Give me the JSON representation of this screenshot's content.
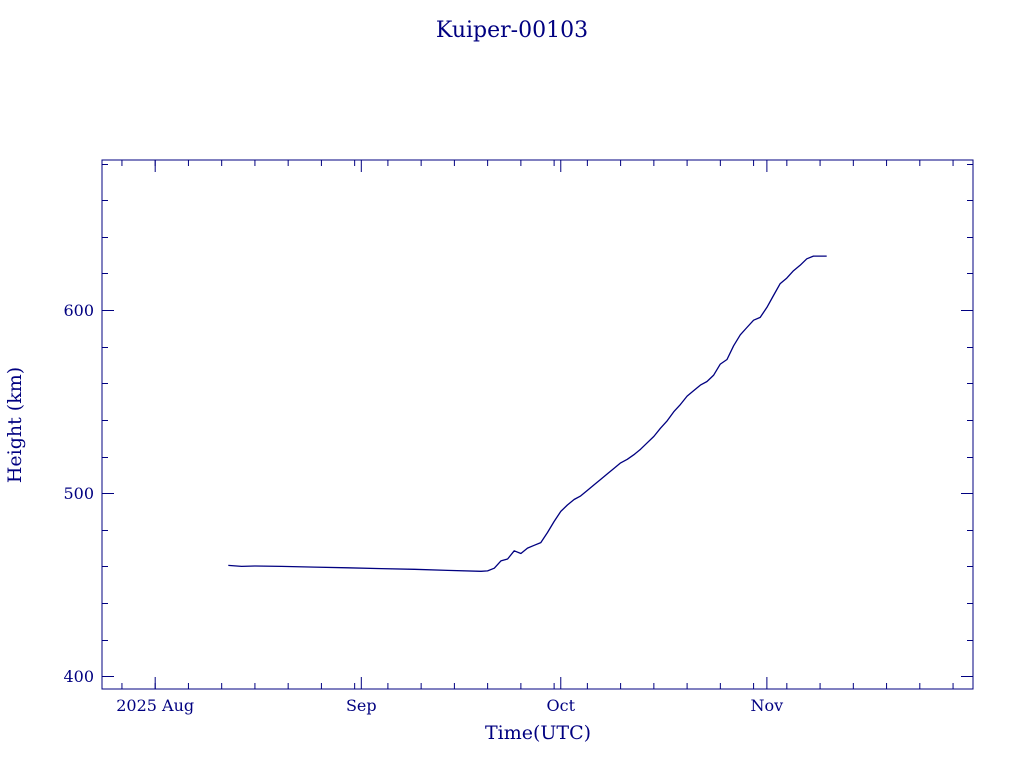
{
  "colors": {
    "ink": "#000080",
    "background": "#ffffff"
  },
  "chart_data": {
    "type": "line",
    "title": "Kuiper-00103",
    "xlabel": "Time(UTC)",
    "ylabel": "Height (km)",
    "x_unit": "date (UTC)",
    "xlim": [
      "2025-07-24",
      "2025-12-02"
    ],
    "ylim": [
      393,
      682
    ],
    "x_ticks": [
      {
        "date": "2025-08-01",
        "label": "2025 Aug"
      },
      {
        "date": "2025-09-01",
        "label": "Sep"
      },
      {
        "date": "2025-10-01",
        "label": "Oct"
      },
      {
        "date": "2025-11-01",
        "label": "Nov"
      }
    ],
    "y_ticks": [
      {
        "value": 400,
        "label": "400"
      },
      {
        "value": 500,
        "label": "500"
      },
      {
        "value": 600,
        "label": "600"
      }
    ],
    "y_minor_step": 20,
    "x_minor_step_days": 5,
    "grid": false,
    "legend": "none",
    "series": [
      {
        "values": [
          [
            "2025-08-12",
            460.5
          ],
          [
            "2025-08-14",
            460.0
          ],
          [
            "2025-08-16",
            460.2
          ],
          [
            "2025-08-20",
            460.0
          ],
          [
            "2025-08-25",
            459.6
          ],
          [
            "2025-08-30",
            459.2
          ],
          [
            "2025-09-04",
            458.8
          ],
          [
            "2025-09-09",
            458.4
          ],
          [
            "2025-09-14",
            457.8
          ],
          [
            "2025-09-19",
            457.3
          ],
          [
            "2025-09-20",
            457.5
          ],
          [
            "2025-09-21",
            459.0
          ],
          [
            "2025-09-22",
            463.0
          ],
          [
            "2025-09-23",
            464.0
          ],
          [
            "2025-09-24",
            468.5
          ],
          [
            "2025-09-25",
            467.0
          ],
          [
            "2025-09-26",
            470.0
          ],
          [
            "2025-09-27",
            471.5
          ],
          [
            "2025-09-28",
            473.0
          ],
          [
            "2025-09-29",
            478.5
          ],
          [
            "2025-09-30",
            484.5
          ],
          [
            "2025-10-01",
            490.0
          ],
          [
            "2025-10-02",
            493.5
          ],
          [
            "2025-10-03",
            496.5
          ],
          [
            "2025-10-04",
            498.5
          ],
          [
            "2025-10-05",
            501.5
          ],
          [
            "2025-10-06",
            504.5
          ],
          [
            "2025-10-07",
            507.5
          ],
          [
            "2025-10-08",
            510.5
          ],
          [
            "2025-10-09",
            513.5
          ],
          [
            "2025-10-10",
            516.5
          ],
          [
            "2025-10-11",
            518.5
          ],
          [
            "2025-10-12",
            521.0
          ],
          [
            "2025-10-13",
            524.0
          ],
          [
            "2025-10-14",
            527.5
          ],
          [
            "2025-10-15",
            531.0
          ],
          [
            "2025-10-16",
            535.5
          ],
          [
            "2025-10-17",
            539.5
          ],
          [
            "2025-10-18",
            544.5
          ],
          [
            "2025-10-19",
            548.5
          ],
          [
            "2025-10-20",
            553.0
          ],
          [
            "2025-10-21",
            556.0
          ],
          [
            "2025-10-22",
            559.0
          ],
          [
            "2025-10-23",
            561.0
          ],
          [
            "2025-10-24",
            564.5
          ],
          [
            "2025-10-25",
            570.5
          ],
          [
            "2025-10-26",
            573.0
          ],
          [
            "2025-10-27",
            580.5
          ],
          [
            "2025-10-28",
            586.5
          ],
          [
            "2025-10-29",
            590.5
          ],
          [
            "2025-10-30",
            594.5
          ],
          [
            "2025-10-31",
            596.0
          ],
          [
            "2025-11-01",
            601.5
          ],
          [
            "2025-11-02",
            608.0
          ],
          [
            "2025-11-03",
            614.5
          ],
          [
            "2025-11-04",
            617.5
          ],
          [
            "2025-11-05",
            621.5
          ],
          [
            "2025-11-06",
            624.5
          ],
          [
            "2025-11-07",
            628.0
          ],
          [
            "2025-11-08",
            629.5
          ],
          [
            "2025-11-09",
            629.5
          ],
          [
            "2025-11-10",
            629.5
          ]
        ]
      }
    ]
  }
}
